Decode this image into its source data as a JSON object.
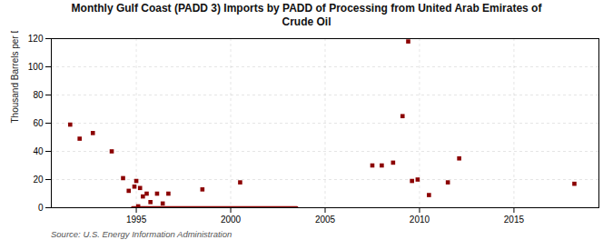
{
  "chart_data": {
    "type": "scatter",
    "title": "Monthly Gulf Coast (PADD 3) Imports by PADD of Processing from United Arab Emirates of\nCrude Oil",
    "ylabel": "Thousand Barrels per Day",
    "source": "Source: U.S. Energy Information Administration",
    "xlim": [
      1990.5,
      2019.5
    ],
    "ylim": [
      0,
      120
    ],
    "xticks": [
      1995,
      2000,
      2005,
      2010,
      2015
    ],
    "yticks": [
      0,
      20,
      40,
      60,
      80,
      100,
      120
    ],
    "grid": true,
    "series": [
      {
        "type": "scatter",
        "color": "#8b0000",
        "marker": "square",
        "x": [
          1991.5,
          1992.0,
          1992.7,
          1993.7,
          1994.3,
          1994.6,
          1994.9,
          1995.0,
          1995.1,
          1995.2,
          1995.35,
          1995.55,
          1995.75,
          1996.1,
          1996.4,
          1996.7,
          1998.5,
          2000.5,
          2007.5,
          2008.0,
          2008.6,
          2009.1,
          2009.4,
          2009.6,
          2009.9,
          2010.5,
          2011.5,
          2012.1,
          2018.2
        ],
        "values": [
          59,
          49,
          53,
          40,
          21,
          12,
          15,
          19,
          1,
          14,
          8,
          10,
          4,
          10,
          3,
          10,
          13,
          18,
          30,
          30,
          32,
          65,
          118,
          19,
          20,
          9,
          18,
          35,
          17
        ]
      },
      {
        "type": "line",
        "color": "#8b0000",
        "line_style": "solid",
        "x": [
          1994.8,
          2003.5
        ],
        "values": [
          0,
          0
        ]
      }
    ]
  }
}
